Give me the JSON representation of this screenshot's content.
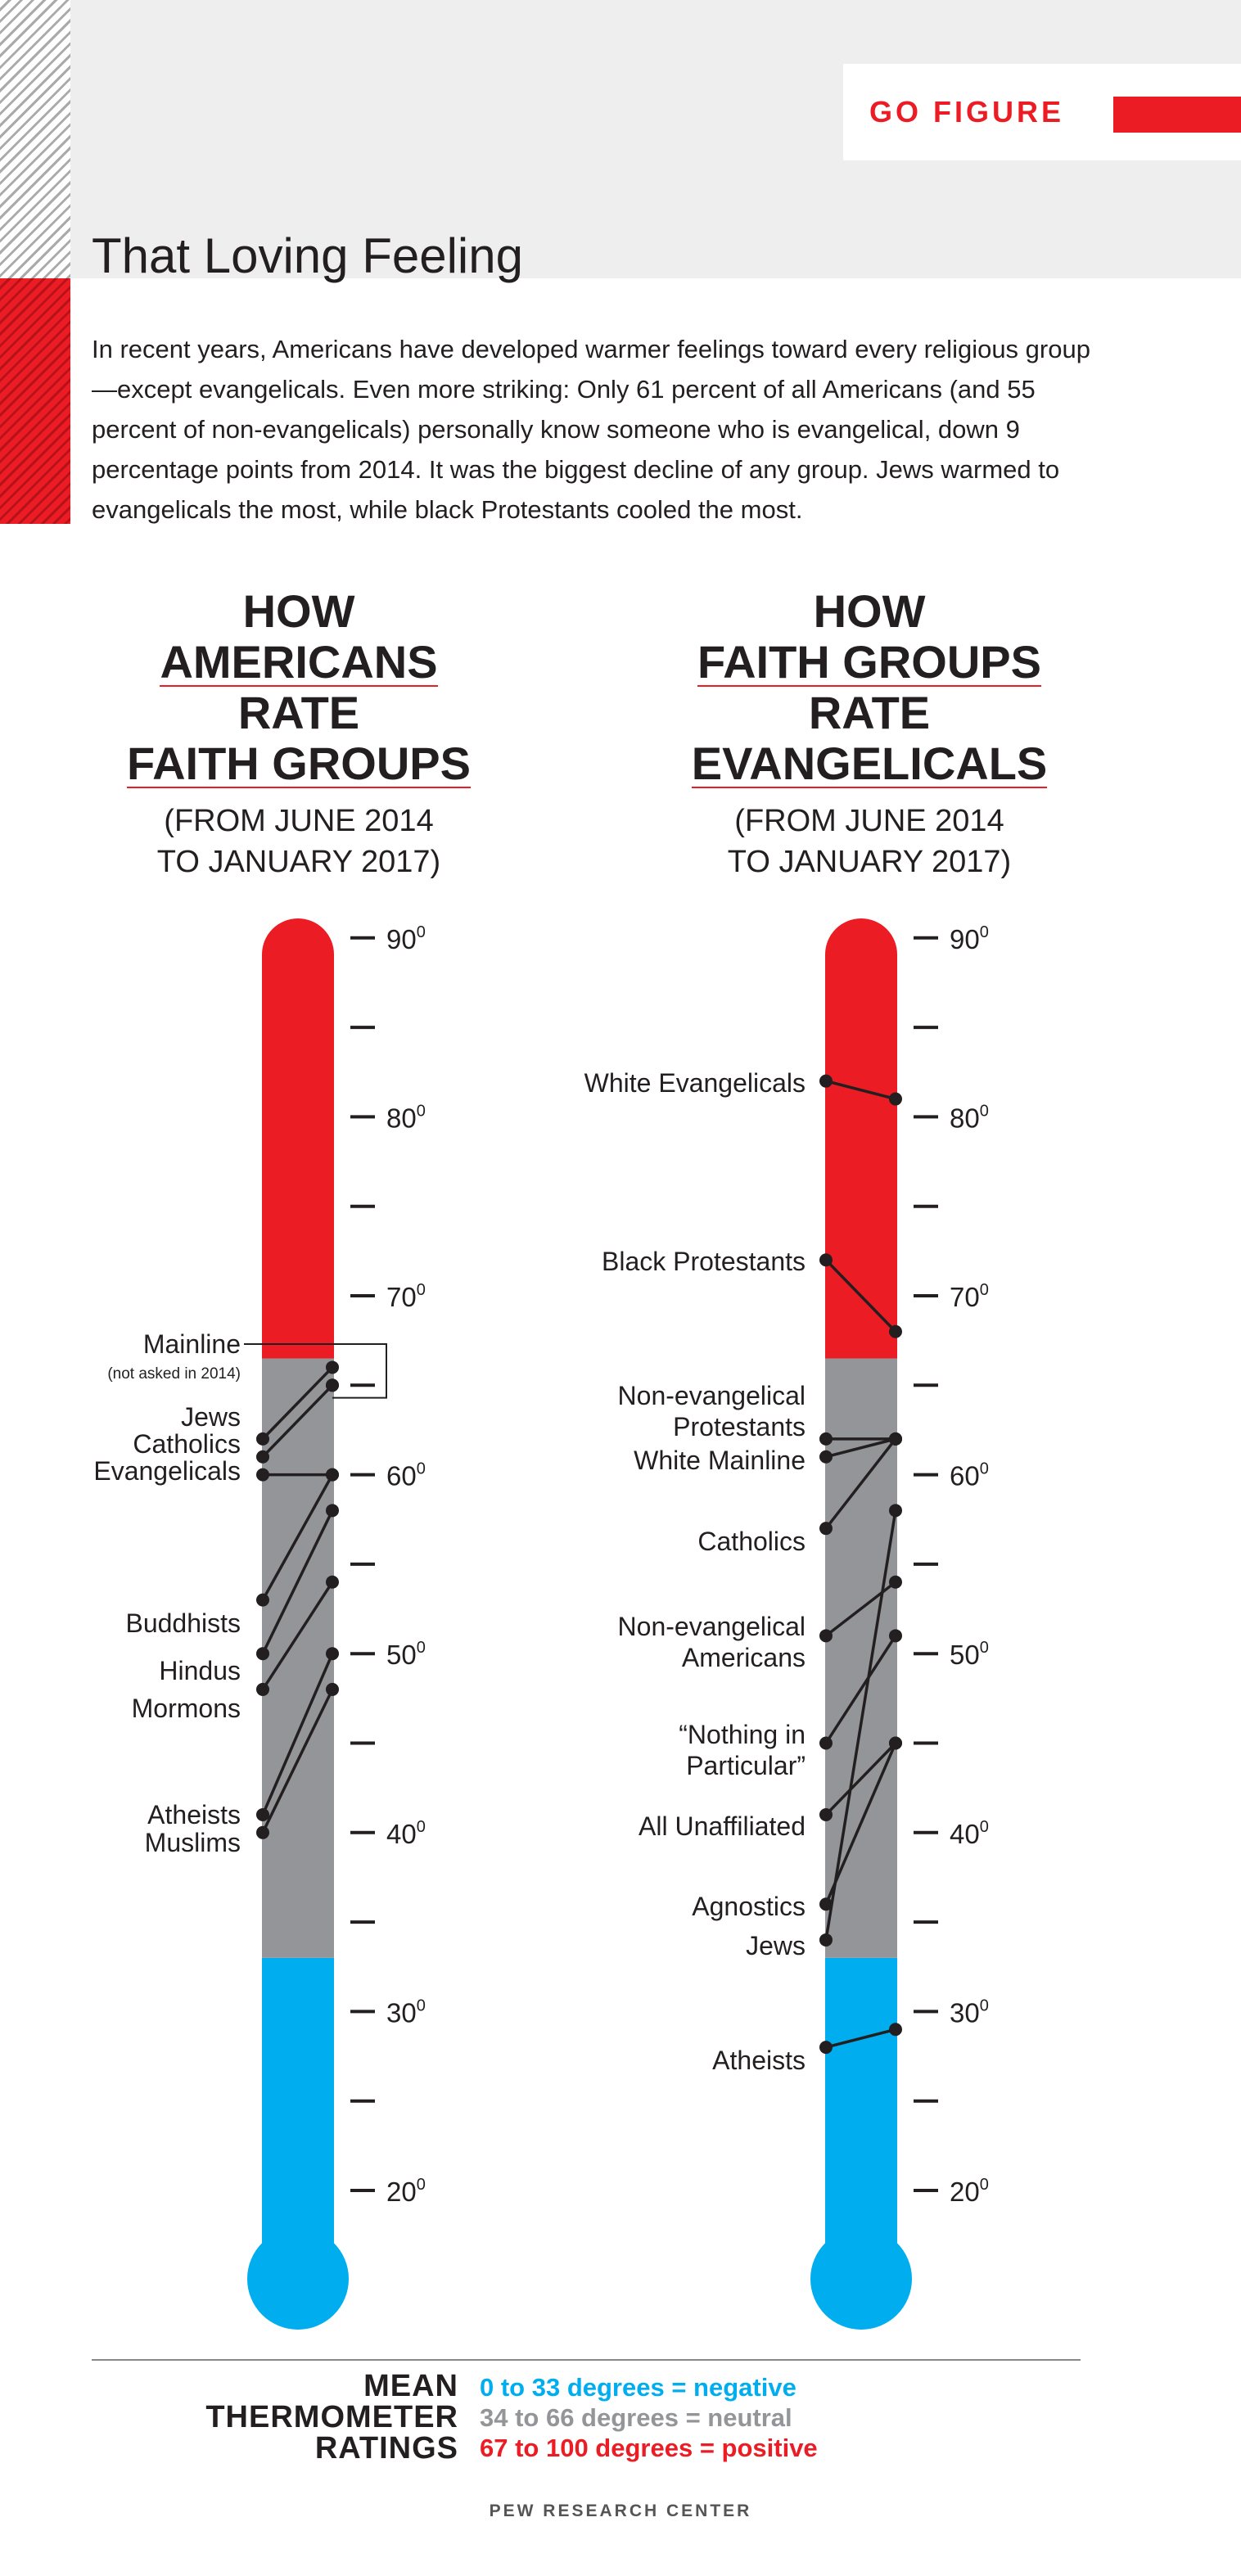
{
  "header": {
    "badge": "GO FIGURE",
    "title": "That Loving Feeling",
    "intro": "In recent years, Americans have developed warmer feelings toward every religious group—except evangelicals. Even more striking: Only 61 percent of all Americans (and 55 percent of non-evangelicals) personally know someone who is evangelical, down 9 percentage points from 2014. It was the biggest decline of any group. Jews warmed to evangelicals the most, while black Protestants cooled the most."
  },
  "panels": [
    {
      "lines": [
        "HOW",
        "AMERICANS",
        "RATE",
        "FAITH GROUPS"
      ],
      "subtitle": [
        "(FROM JUNE 2014",
        "TO JANUARY 2017)"
      ]
    },
    {
      "lines": [
        "HOW",
        "FAITH GROUPS",
        "RATE",
        "EVANGELICALS"
      ],
      "subtitle": [
        "(FROM JUNE 2014",
        "TO JANUARY 2017)"
      ]
    }
  ],
  "scale": {
    "tick_labels": [
      "90",
      "80",
      "70",
      "60",
      "50",
      "40",
      "30",
      "20"
    ],
    "degree_mark": "0"
  },
  "colors": {
    "positive": "#ec1c24",
    "neutral": "#939598",
    "negative": "#00aeef",
    "ink": "#231f20"
  },
  "chart_data": [
    {
      "type": "line",
      "x": [
        "June 2014",
        "January 2017"
      ],
      "ylim": [
        16,
        91
      ],
      "zones": [
        {
          "from": 0,
          "to": 33,
          "color": "#00aeef"
        },
        {
          "from": 34,
          "to": 66,
          "color": "#939598"
        },
        {
          "from": 67,
          "to": 100,
          "color": "#ec1c24"
        }
      ],
      "series": [
        {
          "name": "Mainline",
          "note": "(not asked in 2014)",
          "values": [
            null,
            65
          ]
        },
        {
          "name": "Jews",
          "values": [
            62,
            66
          ]
        },
        {
          "name": "Catholics",
          "values": [
            61,
            65
          ]
        },
        {
          "name": "Evangelicals",
          "values": [
            60,
            60
          ]
        },
        {
          "name": "Buddhists",
          "values": [
            53,
            60
          ]
        },
        {
          "name": "Hindus",
          "values": [
            50,
            58
          ]
        },
        {
          "name": "Mormons",
          "values": [
            48,
            54
          ]
        },
        {
          "name": "Atheists",
          "values": [
            41,
            50
          ]
        },
        {
          "name": "Muslims",
          "values": [
            40,
            48
          ]
        }
      ]
    },
    {
      "type": "line",
      "x": [
        "June 2014",
        "January 2017"
      ],
      "ylim": [
        16,
        91
      ],
      "zones": [
        {
          "from": 0,
          "to": 33,
          "color": "#00aeef"
        },
        {
          "from": 34,
          "to": 66,
          "color": "#939598"
        },
        {
          "from": 67,
          "to": 100,
          "color": "#ec1c24"
        }
      ],
      "series": [
        {
          "name": "White Evangelicals",
          "values": [
            82,
            81
          ]
        },
        {
          "name": "Black Protestants",
          "values": [
            72,
            68
          ]
        },
        {
          "name": "Non-evangelical Protestants",
          "values": [
            62,
            62
          ]
        },
        {
          "name": "White Mainline",
          "values": [
            61,
            62
          ]
        },
        {
          "name": "Catholics",
          "values": [
            57,
            62
          ]
        },
        {
          "name": "Non-evangelical Americans",
          "values": [
            51,
            54
          ]
        },
        {
          "name": "“Nothing in Particular”",
          "values": [
            45,
            51
          ]
        },
        {
          "name": "All Unaffiliated",
          "values": [
            41,
            45
          ]
        },
        {
          "name": "Agnostics",
          "values": [
            36,
            45
          ]
        },
        {
          "name": "Jews",
          "values": [
            34,
            58
          ]
        },
        {
          "name": "Atheists",
          "values": [
            28,
            29
          ]
        }
      ]
    }
  ],
  "labels": {
    "left": {
      "mainline": "Mainline",
      "mainline_note": "(not asked in 2014)",
      "jews": "Jews",
      "catholics": "Catholics",
      "evangelicals": "Evangelicals",
      "buddhists": "Buddhists",
      "hindus": "Hindus",
      "mormons": "Mormons",
      "atheists": "Atheists",
      "muslims": "Muslims"
    },
    "right": {
      "white_evangelicals": "White Evangelicals",
      "black_protestants": "Black Protestants",
      "nonevang_prot_1": "Non-evangelical",
      "nonevang_prot_2": "Protestants",
      "white_mainline": "White Mainline",
      "catholics": "Catholics",
      "nonevang_am_1": "Non-evangelical",
      "nonevang_am_2": "Americans",
      "nothing_1": "“Nothing in",
      "nothing_2": "Particular”",
      "unaffiliated": "All Unaffiliated",
      "agnostics": "Agnostics",
      "jews": "Jews",
      "atheists": "Atheists"
    }
  },
  "legend": {
    "title": [
      "MEAN",
      "THERMOMETER",
      "RATINGS"
    ],
    "negative": "0 to 33 degrees = negative",
    "neutral": "34 to 66 degrees = neutral",
    "positive": "67 to 100 degrees = positive"
  },
  "source": "PEW RESEARCH CENTER"
}
